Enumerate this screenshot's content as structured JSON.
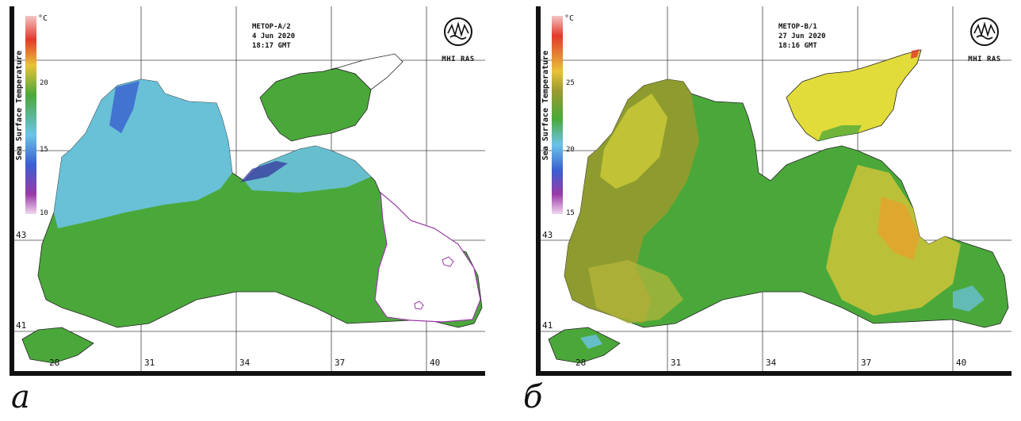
{
  "panels": [
    {
      "id": "a",
      "caption": "а",
      "satellite": "METOP-A/2",
      "date": "4 Jun 2020",
      "time": "18:17 GMT",
      "logo": "MHI RAS",
      "legend": {
        "title": "Sea Surface Temperature",
        "unit": "°C",
        "ticks": [
          "20",
          "15",
          "10"
        ],
        "range": [
          10,
          23
        ]
      },
      "lon_ticks": [
        "28",
        "31",
        "34",
        "37",
        "40"
      ],
      "lat_ticks": [
        "43",
        "41"
      ]
    },
    {
      "id": "b",
      "caption": "б",
      "satellite": "METOP-B/1",
      "date": "27 Jun 2020",
      "time": "18:16 GMT",
      "logo": "MHI RAS",
      "legend": {
        "title": "Sea Surface Temperature",
        "unit": "°C",
        "ticks": [
          "25",
          "20",
          "15"
        ],
        "range": [
          15,
          28
        ]
      },
      "lon_ticks": [
        "28",
        "31",
        "34",
        "37",
        "40"
      ],
      "lat_ticks": [
        "43",
        "41"
      ]
    }
  ],
  "colors": {
    "green": "#4aa83a",
    "cyan": "#6cc3e8",
    "blue": "#3a5fd0",
    "purple": "#7a2f9a",
    "yellow": "#e2dc3a",
    "olive": "#9a9a2e",
    "orange": "#e89a2a",
    "red": "#e23a2a"
  }
}
